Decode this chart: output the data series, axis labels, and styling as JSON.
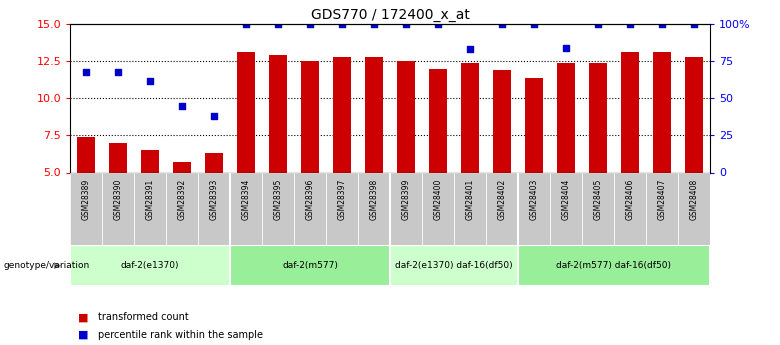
{
  "title": "GDS770 / 172400_x_at",
  "samples": [
    "GSM28389",
    "GSM28390",
    "GSM28391",
    "GSM28392",
    "GSM28393",
    "GSM28394",
    "GSM28395",
    "GSM28396",
    "GSM28397",
    "GSM28398",
    "GSM28399",
    "GSM28400",
    "GSM28401",
    "GSM28402",
    "GSM28403",
    "GSM28404",
    "GSM28405",
    "GSM28406",
    "GSM28407",
    "GSM28408"
  ],
  "bar_values": [
    7.4,
    7.0,
    6.5,
    5.7,
    6.3,
    13.1,
    12.9,
    12.5,
    12.8,
    12.8,
    12.5,
    12.0,
    12.4,
    11.9,
    11.4,
    12.4,
    12.4,
    13.1,
    13.1,
    12.8
  ],
  "percentile_values": [
    68,
    68,
    62,
    45,
    38,
    100,
    100,
    100,
    100,
    100,
    100,
    100,
    83,
    100,
    100,
    84,
    100,
    100,
    100,
    100
  ],
  "bar_color": "#CC0000",
  "dot_color": "#0000CC",
  "ylim_left": [
    5,
    15
  ],
  "ymin": 5,
  "ymax": 15,
  "pct_min": 0,
  "pct_max": 100,
  "yticks_left": [
    5.0,
    7.5,
    10.0,
    12.5,
    15.0
  ],
  "yticks_right": [
    0,
    25,
    50,
    75,
    100
  ],
  "ytick_labels_right": [
    "0",
    "25",
    "50",
    "75",
    "100%"
  ],
  "groups": [
    {
      "label": "daf-2(e1370)",
      "start": 0,
      "end": 5,
      "color": "#ccffcc"
    },
    {
      "label": "daf-2(m577)",
      "start": 5,
      "end": 10,
      "color": "#99ee99"
    },
    {
      "label": "daf-2(e1370) daf-16(df50)",
      "start": 10,
      "end": 14,
      "color": "#ccffcc"
    },
    {
      "label": "daf-2(m577) daf-16(df50)",
      "start": 14,
      "end": 20,
      "color": "#99ee99"
    }
  ],
  "genotype_label": "genotype/variation",
  "legend_bar_label": "transformed count",
  "legend_dot_label": "percentile rank within the sample",
  "bar_width": 0.55
}
